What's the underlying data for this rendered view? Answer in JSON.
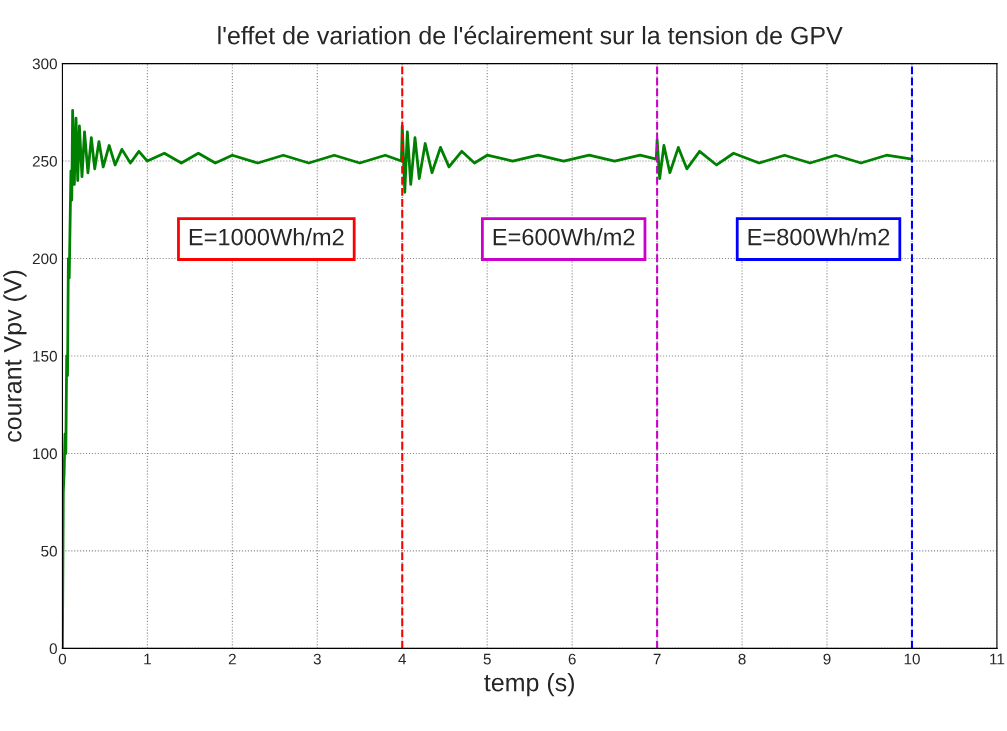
{
  "chart_data": {
    "type": "line",
    "title": "l'effet de variation de l'éclairement sur la tension de GPV",
    "xlabel": "temp (s)",
    "ylabel": "courant Vpv (V)",
    "series": [
      {
        "color": "#008000",
        "x": [
          0,
          0.01,
          0.02,
          0.03,
          0.04,
          0.05,
          0.06,
          0.07,
          0.08,
          0.1,
          0.11,
          0.12,
          0.14,
          0.16,
          0.18,
          0.2,
          0.23,
          0.26,
          0.3,
          0.34,
          0.38,
          0.43,
          0.48,
          0.55,
          0.62,
          0.7,
          0.8,
          0.9,
          1.0,
          1.2,
          1.4,
          1.6,
          1.8,
          2.0,
          2.3,
          2.6,
          2.9,
          3.2,
          3.5,
          3.8,
          3.99,
          4.0,
          4.03,
          4.06,
          4.1,
          4.15,
          4.2,
          4.27,
          4.35,
          4.45,
          4.55,
          4.7,
          4.85,
          5.0,
          5.3,
          5.6,
          5.9,
          6.2,
          6.5,
          6.8,
          6.99,
          7.0,
          7.03,
          7.08,
          7.15,
          7.25,
          7.35,
          7.5,
          7.7,
          7.9,
          8.2,
          8.5,
          8.8,
          9.1,
          9.4,
          9.7,
          10.0
        ],
        "values": [
          0,
          80,
          90,
          110,
          100,
          150,
          140,
          200,
          190,
          245,
          230,
          276,
          238,
          272,
          240,
          268,
          242,
          265,
          244,
          262,
          246,
          260,
          247,
          258,
          248,
          256,
          249,
          255,
          250,
          254,
          249,
          254,
          249,
          253,
          249,
          253,
          249,
          253,
          249,
          253,
          250,
          268,
          234,
          265,
          238,
          262,
          241,
          259,
          244,
          257,
          247,
          255,
          249,
          253,
          250,
          253,
          250,
          253,
          250,
          253,
          251,
          261,
          241,
          258,
          244,
          257,
          246,
          255,
          248,
          254,
          249,
          253,
          249,
          253,
          249,
          253,
          251
        ]
      }
    ],
    "xlim": [
      0,
      11
    ],
    "xticks": [
      0,
      1,
      2,
      3,
      4,
      5,
      6,
      7,
      8,
      9,
      10,
      11
    ],
    "ylim": [
      0,
      300
    ],
    "yticks": [
      0,
      50,
      100,
      150,
      200,
      250,
      300
    ],
    "grid": true,
    "line_style": "solid",
    "marker": "none",
    "annotations": [
      "E=1000Wh/m2",
      "E=600Wh/m2",
      "E=800Wh/m2"
    ],
    "ref_lines": [
      {
        "axis": "x",
        "value": 4,
        "color": "#ff0000",
        "line_style": "dashed"
      },
      {
        "axis": "x",
        "value": 7,
        "color": "#cc00cc",
        "line_style": "dashed"
      },
      {
        "axis": "x",
        "value": 10,
        "color": "#0000ff",
        "line_style": "dashed"
      }
    ]
  }
}
